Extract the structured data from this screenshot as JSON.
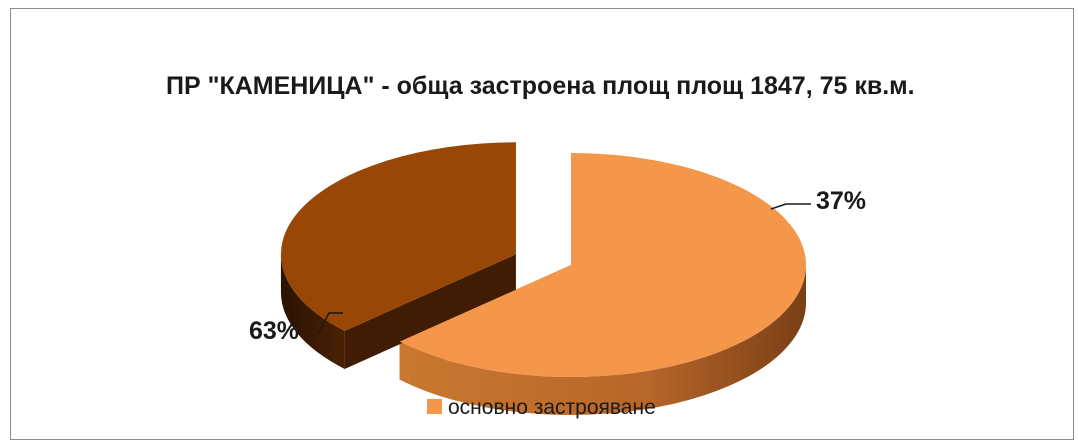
{
  "chart_data": {
    "type": "pie",
    "style": "3d-exploded",
    "title": "ПР \"КАМЕНИЦА\" - обща застроена площ площ 1847, 75 кв.м.",
    "slices": [
      {
        "label": "основно застрояване",
        "value": 63,
        "value_label": "63%",
        "color": "#f4974a",
        "side_color": "#b2632a"
      },
      {
        "label": "",
        "value": 37,
        "value_label": "37%",
        "color": "#984706",
        "side_color": "#3f1c03"
      }
    ],
    "legend": {
      "position": "bottom",
      "entries": [
        "основно застрояване"
      ]
    }
  }
}
